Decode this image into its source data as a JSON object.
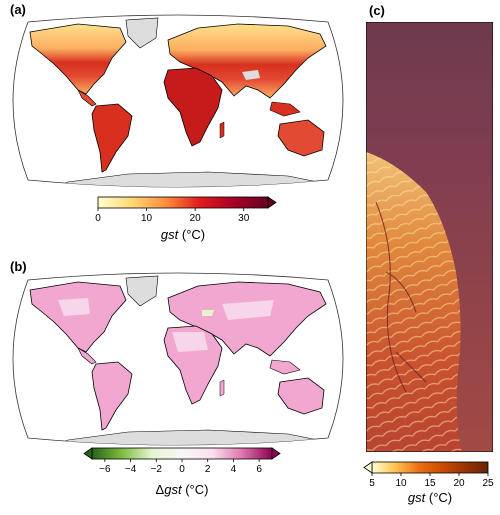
{
  "panels": {
    "a": {
      "label": "(a)"
    },
    "b": {
      "label": "(b)"
    },
    "c": {
      "label": "(c)"
    }
  },
  "colorbars": {
    "a": {
      "var": "gst",
      "unit": "(°C)",
      "ticks": [
        "0",
        "10",
        "20",
        "30"
      ],
      "tick_values": [
        0,
        10,
        20,
        30
      ],
      "range": [
        0,
        35
      ],
      "extend": "max",
      "colors": [
        "#ffffcc",
        "#fed976",
        "#fd8d3c",
        "#e31a1c",
        "#a50026",
        "#67001f"
      ]
    },
    "b": {
      "prefix": "Δ",
      "var": "gst",
      "unit": "(°C)",
      "ticks": [
        "−6",
        "−4",
        "−2",
        "0",
        "2",
        "4",
        "6"
      ],
      "tick_values": [
        -6,
        -4,
        -2,
        0,
        2,
        4,
        6
      ],
      "range": [
        -7,
        7
      ],
      "extend": "both",
      "colors": [
        "#276419",
        "#7fbc41",
        "#e6f5d0",
        "#f7f7f7",
        "#fde0ef",
        "#de77ae",
        "#8e0152"
      ]
    },
    "c": {
      "var": "gst",
      "unit": "(°C)",
      "ticks": [
        "5",
        "10",
        "15",
        "20",
        "25"
      ],
      "tick_values": [
        5,
        10,
        15,
        20,
        25
      ],
      "range": [
        5,
        25
      ],
      "extend": "min",
      "colors": [
        "#ffffd4",
        "#fec44f",
        "#ec7014",
        "#cc4c02",
        "#993404",
        "#662506"
      ]
    }
  },
  "colors": {
    "land_a_warm": "#d7301f",
    "land_a_mild": "#fdae61",
    "land_a_cool": "#fee08b",
    "land_b": "#f1a7d0",
    "land_b_light": "#f7d6ea",
    "ice": "#dddddd",
    "panel_c_top": "#7a3a50",
    "panel_c_bottom": "#c2573a"
  }
}
